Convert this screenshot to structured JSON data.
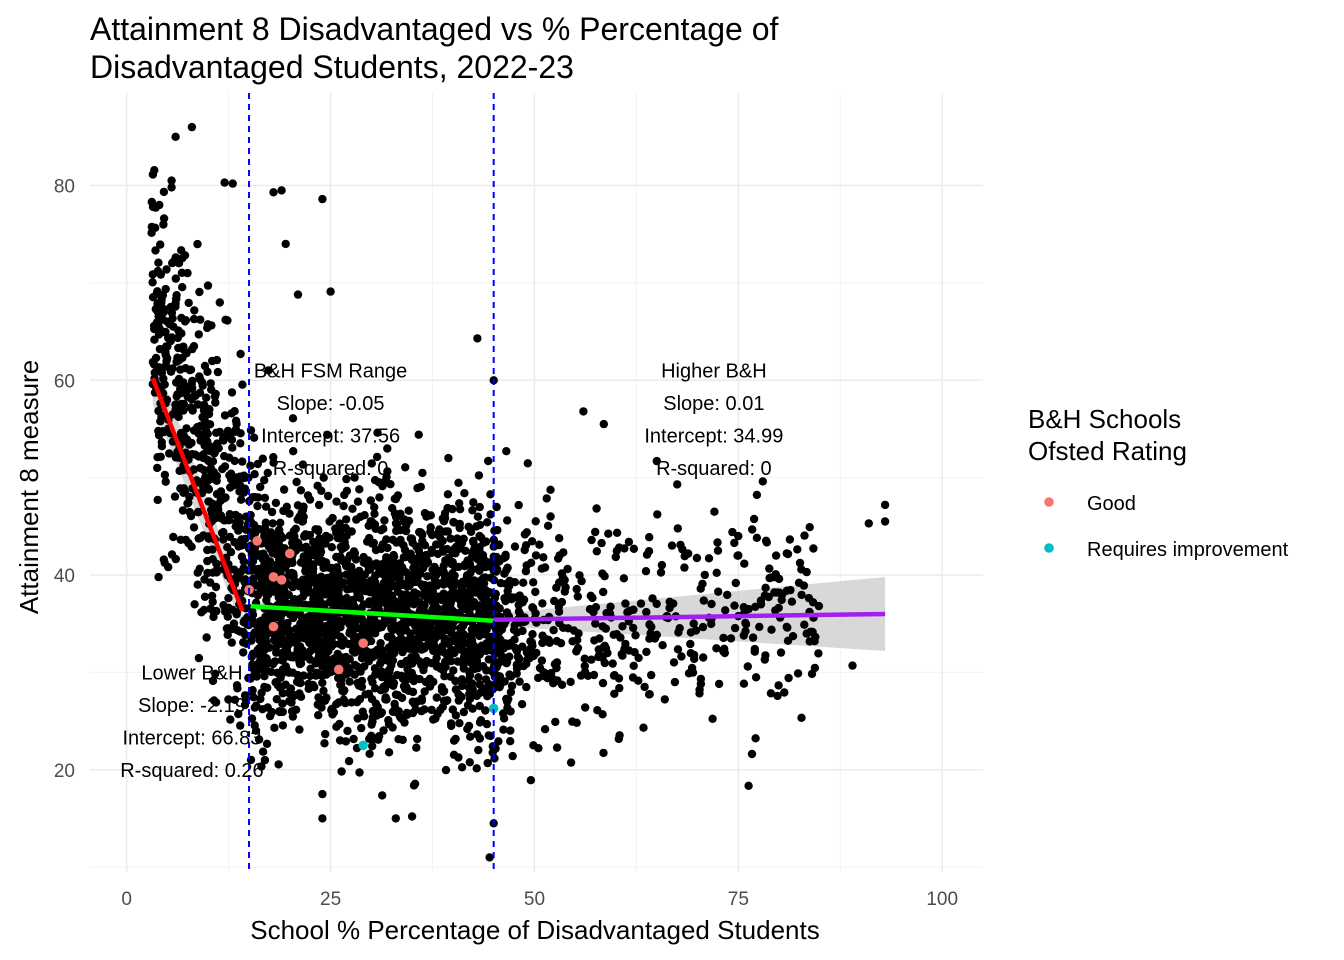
{
  "chart_data": {
    "type": "scatter",
    "title": "Attainment 8 Disadvantaged vs % Percentage of\nDisadvantaged Students, 2022-23",
    "xlabel": "School % Percentage of Disadvantaged Students",
    "ylabel": "Attainment 8 measure",
    "xlim": [
      -4.5,
      105
    ],
    "ylim": [
      9.5,
      89.5
    ],
    "x_ticks": [
      0,
      25,
      50,
      75,
      100
    ],
    "y_ticks": [
      20,
      40,
      60,
      80
    ],
    "grid": true,
    "legend_position": "right",
    "background_points": {
      "color": "#000000",
      "approx_count": 3000,
      "note_regions": [
        {
          "x": [
            3,
            15
          ],
          "y": [
            23,
            86
          ]
        },
        {
          "x": [
            15,
            45
          ],
          "y": [
            11,
            66
          ]
        },
        {
          "x": [
            45,
            93
          ],
          "y": [
            15,
            57
          ]
        }
      ],
      "outliers": [
        [
          4,
          78
        ],
        [
          4.5,
          76
        ],
        [
          5.5,
          80.5
        ],
        [
          6,
          85
        ],
        [
          8,
          86
        ],
        [
          12,
          80.3
        ],
        [
          13,
          80.2
        ],
        [
          18,
          79.3
        ],
        [
          19,
          79.5
        ],
        [
          19.5,
          74
        ],
        [
          24,
          78.6
        ],
        [
          21,
          68.8
        ],
        [
          25,
          69.1
        ],
        [
          43,
          64.3
        ],
        [
          45,
          60
        ],
        [
          56,
          56.8
        ],
        [
          58.5,
          55.5
        ],
        [
          65,
          51.7
        ],
        [
          67.5,
          49.3
        ],
        [
          72.5,
          42.5
        ],
        [
          75,
          44
        ],
        [
          74.5,
          43.3
        ],
        [
          75,
          42
        ],
        [
          80,
          39.6
        ],
        [
          81,
          34.6
        ],
        [
          89,
          30.7
        ],
        [
          91,
          45.3
        ],
        [
          93,
          45.5
        ],
        [
          93,
          47.2
        ],
        [
          45,
          14.5
        ],
        [
          44.5,
          11
        ],
        [
          24,
          15
        ],
        [
          33,
          15
        ],
        [
          35,
          15.2
        ],
        [
          24,
          17.5
        ]
      ]
    },
    "series": [
      {
        "name": "Good",
        "color": "#F8766D",
        "points": [
          [
            15,
            38.5
          ],
          [
            16,
            43.5
          ],
          [
            20,
            42.2
          ],
          [
            18,
            39.8
          ],
          [
            19,
            39.5
          ],
          [
            18,
            34.7
          ],
          [
            29,
            33
          ],
          [
            26,
            30.3
          ]
        ]
      },
      {
        "name": "Requires improvement",
        "color": "#00BFC4",
        "points": [
          [
            45,
            26.3
          ],
          [
            29,
            22.5
          ]
        ]
      }
    ],
    "regression_lines": [
      {
        "color": "#ff0000",
        "x": [
          3.2,
          14.2
        ],
        "y": [
          60.2,
          36.3
        ],
        "ribbon": {
          "x0": 3.2,
          "x1": 14.2,
          "lo": [
            57.5,
            34.6
          ],
          "hi": [
            62.9,
            38.0
          ]
        }
      },
      {
        "color": "#00ff00",
        "x": [
          15.2,
          45
        ],
        "y": [
          36.8,
          35.3
        ],
        "ribbon": {
          "x0": 15.2,
          "x1": 45,
          "lo": [
            36.4,
            34.8
          ],
          "hi": [
            37.2,
            35.8
          ]
        }
      },
      {
        "color": "#a020f0",
        "x": [
          45,
          93
        ],
        "y": [
          35.4,
          36.0
        ],
        "ribbon": {
          "x0": 45,
          "x1": 93,
          "lo": [
            34.8,
            32.2
          ],
          "hi": [
            36.0,
            39.8
          ]
        }
      }
    ],
    "vlines": [
      15,
      45
    ],
    "vline_color": "#0000ff",
    "annotations": [
      {
        "x": 8,
        "y": 25,
        "lines": [
          "Lower B&H",
          "Slope: -2.19",
          "Intercept: 66.83",
          "R-squared: 0.26"
        ]
      },
      {
        "x": 25,
        "y": 56,
        "lines": [
          "B&H FSM Range",
          "Slope: -0.05",
          "Intercept: 37.56",
          "R-squared: 0"
        ]
      },
      {
        "x": 72,
        "y": 56,
        "lines": [
          "Higher B&H",
          "Slope: 0.01",
          "Intercept: 34.99",
          "R-squared: 0"
        ]
      }
    ],
    "legend": {
      "title": "B&H Schools\nOfsted Rating",
      "items": [
        "Good",
        "Requires improvement"
      ]
    }
  }
}
